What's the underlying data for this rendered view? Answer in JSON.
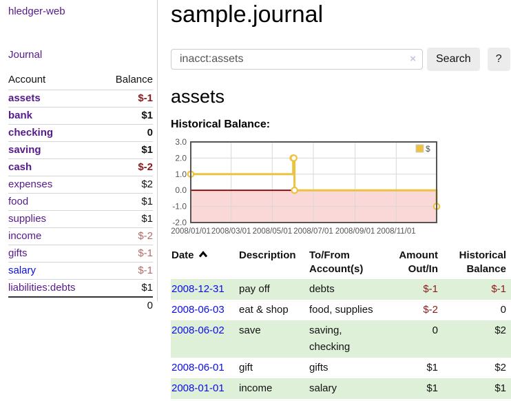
{
  "sidebar": {
    "brand": "hledger-web",
    "journal_link": "Journal",
    "accounts_table": {
      "headers": {
        "account": "Account",
        "balance": "Balance"
      },
      "rows": [
        {
          "name": "assets",
          "balance": "$-1"
        },
        {
          "name": "bank",
          "balance": "$1"
        },
        {
          "name": "checking",
          "balance": "0"
        },
        {
          "name": "saving",
          "balance": "$1"
        },
        {
          "name": "cash",
          "balance": "$-2"
        },
        {
          "name": "expenses",
          "balance": "$2"
        },
        {
          "name": "food",
          "balance": "$1"
        },
        {
          "name": "supplies",
          "balance": "$1"
        },
        {
          "name": "income",
          "balance": "$-2"
        },
        {
          "name": "gifts",
          "balance": "$-1"
        },
        {
          "name": "salary",
          "balance": "$-1"
        },
        {
          "name": "liabilities:debts",
          "balance": "$1"
        }
      ],
      "total": "0"
    }
  },
  "main": {
    "title": "sample.journal",
    "search": {
      "value": "inacct:assets",
      "clear_icon": "×",
      "button_label": "Search",
      "help_label": "?"
    },
    "account_heading": "assets",
    "chart_label": "Historical Balance:"
  },
  "chart_data": {
    "type": "line",
    "title": "Historical Balance:",
    "style": "steps",
    "series": [
      {
        "name": "$",
        "color": "#EDC240",
        "points": [
          [
            "2008-01-01",
            1
          ],
          [
            "2008-06-01",
            2
          ],
          [
            "2008-06-02",
            2
          ],
          [
            "2008-06-03",
            0
          ],
          [
            "2008-12-31",
            -1
          ]
        ]
      }
    ],
    "x_range": [
      "2008-01-01",
      "2008-12-31"
    ],
    "ylim": [
      -2,
      3
    ],
    "y_ticks": [
      3.0,
      2.0,
      1.0,
      0.0,
      -1.0,
      -2.0
    ],
    "x_ticks": [
      "2008/01/01",
      "2008/03/01",
      "2008/05/01",
      "2008/07/01",
      "2008/09/01",
      "2008/11/01"
    ],
    "grid": true,
    "legend": {
      "label": "$",
      "position": "top-right"
    },
    "negative_region": {
      "below": 0,
      "fill": "#fbd8d8",
      "line_color": "#8b0000"
    }
  },
  "register": {
    "headers": {
      "date": "Date",
      "description": "Description",
      "account": "To/From Account(s)",
      "amount": "Amount Out/In",
      "balance": "Historical Balance"
    },
    "rows": [
      {
        "date": "2008-12-31",
        "description": "pay off",
        "accounts": "debts",
        "amount": "$-1",
        "balance": "$-1"
      },
      {
        "date": "2008-06-03",
        "description": "eat & shop",
        "accounts": "food, supplies",
        "amount": "$-2",
        "balance": "0"
      },
      {
        "date": "2008-06-02",
        "description": "save",
        "accounts": "saving, checking",
        "amount": "0",
        "balance": "$2"
      },
      {
        "date": "2008-06-01",
        "description": "gift",
        "accounts": "gifts",
        "amount": "$1",
        "balance": "$2"
      },
      {
        "date": "2008-01-01",
        "description": "income",
        "accounts": "salary",
        "amount": "$1",
        "balance": "$1"
      }
    ]
  },
  "colors": {
    "link_purple": "#551A8B",
    "link_blue": "#0b0bee",
    "negative_red": "#8b1a1a",
    "negative_dim": "#b36b6b",
    "row_stripe_green": "#dff0d8",
    "chart_series_yellow": "#EDC240",
    "chart_negative_pink": "#fbd8d8",
    "chart_zero_line": "#8b0000"
  }
}
